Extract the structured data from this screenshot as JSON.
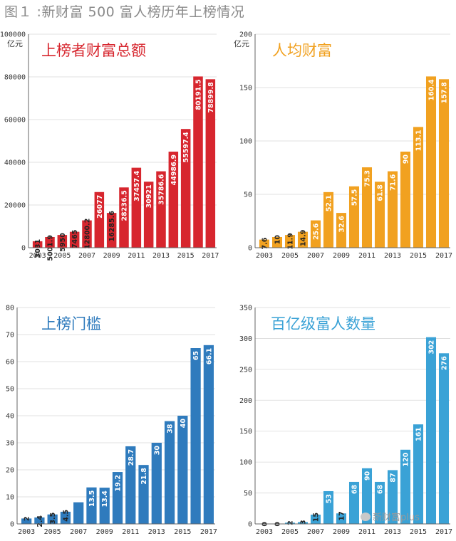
{
  "figure_title": "图１ :新财富 500 富人榜历年上榜情况",
  "watermark": "新财富plus",
  "colors": {
    "panel1": "#d7262e",
    "panel2": "#f1a120",
    "panel3": "#2f7bbd",
    "panel4": "#3aa2d6",
    "label": "#ffffff",
    "tick": "#333333"
  },
  "chart_data": [
    {
      "type": "bar",
      "title": "上榜者财富总额",
      "unit": "亿元",
      "color_key": "panel1",
      "categories": [
        "2003",
        "2004",
        "2005",
        "2006",
        "2007",
        "2008",
        "2009",
        "2010",
        "2011",
        "2012",
        "2013",
        "2014",
        "2015",
        "2016",
        "2017"
      ],
      "x_tick_labels": [
        "2003",
        "2005",
        "2007",
        "2009",
        "2011",
        "2013",
        "2015",
        "2017"
      ],
      "values": [
        3031,
        5001.9,
        5950,
        7465,
        12800.2,
        26077,
        16285.6,
        28236.5,
        37457.4,
        30921,
        35786.6,
        44986.9,
        55597.4,
        80191.5,
        78899.8
      ],
      "data_labels": [
        "3031",
        "5001.9",
        "5950",
        "7465",
        "12800.2",
        "26077",
        "16285.6",
        "28236.5",
        "37457.4",
        "30921",
        "35786.6",
        "44986.9",
        "55597.4",
        "80191.5",
        "78899.8"
      ],
      "y_ticks": [
        0,
        20000,
        40000,
        60000,
        80000,
        100000
      ],
      "ylim": [
        0,
        100000
      ]
    },
    {
      "type": "bar",
      "title": "人均财富",
      "unit": "亿元",
      "color_key": "panel2",
      "categories": [
        "2003",
        "2004",
        "2005",
        "2006",
        "2007",
        "2008",
        "2009",
        "2010",
        "2011",
        "2012",
        "2013",
        "2014",
        "2015",
        "2016",
        "2017"
      ],
      "x_tick_labels": [
        "2003",
        "2005",
        "2007",
        "2009",
        "2011",
        "2013",
        "2015",
        "2017"
      ],
      "values": [
        7.6,
        10,
        11.9,
        14.9,
        25.6,
        52.1,
        32.6,
        57.5,
        75.3,
        61.8,
        71.6,
        90,
        113.1,
        160.4,
        157.8
      ],
      "data_labels": [
        "7.6",
        "10",
        "11.9",
        "14.9",
        "25.6",
        "52.1",
        "32.6",
        "57.5",
        "75.3",
        "61.8",
        "71.6",
        "90",
        "113.1",
        "160.4",
        "157.8"
      ],
      "y_ticks": [
        0,
        50,
        100,
        150,
        200
      ],
      "ylim": [
        0,
        200
      ]
    },
    {
      "type": "bar",
      "title": "上榜门槛",
      "unit": "",
      "color_key": "panel3",
      "categories": [
        "2003",
        "2004",
        "2005",
        "2006",
        "2007",
        "2008",
        "2009",
        "2010",
        "2011",
        "2012",
        "2013",
        "2014",
        "2015",
        "2016",
        "2017"
      ],
      "x_tick_labels": [
        "2003",
        "2005",
        "2007",
        "2009",
        "2011",
        "2013",
        "2015",
        "2017"
      ],
      "values": [
        2,
        2.4,
        3.5,
        4.5,
        8,
        13.5,
        13.4,
        19.2,
        28.7,
        21.8,
        30,
        38,
        40,
        65,
        66.1
      ],
      "data_labels": [
        "2",
        "2.4",
        "3.5",
        "4.5",
        "",
        "13.5",
        "13.4",
        "19.2",
        "28.7",
        "21.8",
        "30",
        "38",
        "40",
        "65",
        "66.1"
      ],
      "y_ticks": [
        0,
        10,
        20,
        30,
        40,
        50,
        60,
        70,
        80
      ],
      "ylim": [
        0,
        80
      ]
    },
    {
      "type": "bar",
      "title": "百亿级富人数量",
      "unit": "",
      "color_key": "panel4",
      "categories": [
        "2003",
        "2004",
        "2005",
        "2006",
        "2007",
        "2008",
        "2009",
        "2010",
        "2011",
        "2012",
        "2013",
        "2014",
        "2015",
        "2016",
        "2017"
      ],
      "x_tick_labels": [
        "2003",
        "2005",
        "2007",
        "2009",
        "2011",
        "2013",
        "2015",
        "2017"
      ],
      "values": [
        0,
        0,
        2,
        3,
        15,
        53,
        17,
        68,
        90,
        68,
        87,
        120,
        161,
        302,
        276
      ],
      "data_labels": [
        "0",
        "0",
        "2",
        "3",
        "15",
        "53",
        "17",
        "68",
        "90",
        "68",
        "87",
        "120",
        "161",
        "302",
        "276"
      ],
      "y_ticks": [
        0,
        50,
        100,
        150,
        200,
        250,
        300,
        350
      ],
      "ylim": [
        0,
        350
      ]
    }
  ]
}
